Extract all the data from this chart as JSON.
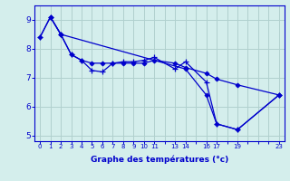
{
  "xlabel": "Graphe des températures (°c)",
  "bg_color": "#d4eeec",
  "line_color": "#0000cc",
  "grid_color": "#b0d0ce",
  "axis_color": "#0000cc",
  "xlim": [
    -0.5,
    23.5
  ],
  "ylim": [
    4.8,
    9.5
  ],
  "yticks": [
    5,
    6,
    7,
    8,
    9
  ],
  "xtick_positions": [
    0,
    1,
    2,
    3,
    4,
    5,
    6,
    7,
    8,
    9,
    10,
    11,
    12,
    13,
    14,
    15,
    16,
    17,
    18,
    19,
    20,
    21,
    22,
    23
  ],
  "xtick_labels": [
    "0",
    "1",
    "2",
    "3",
    "4",
    "5",
    "6",
    "7",
    "8",
    "9",
    "10",
    "11",
    "",
    "13",
    "14",
    "",
    "16",
    "17",
    "",
    "19",
    "",
    "",
    "",
    "23"
  ],
  "series1_x": [
    0,
    1,
    2,
    3,
    4,
    5,
    6,
    7,
    8,
    9,
    10,
    11,
    13,
    14,
    16,
    17,
    19,
    23
  ],
  "series1_y": [
    8.4,
    9.1,
    8.5,
    7.8,
    7.6,
    7.25,
    7.2,
    7.5,
    7.55,
    7.55,
    7.6,
    7.7,
    7.3,
    7.55,
    6.85,
    5.4,
    5.2,
    6.4
  ],
  "series2_x": [
    0,
    1,
    2,
    3,
    4,
    5,
    6,
    7,
    8,
    9,
    10,
    11,
    13,
    14,
    16,
    17,
    19,
    23
  ],
  "series2_y": [
    8.4,
    9.1,
    8.5,
    7.8,
    7.6,
    7.5,
    7.5,
    7.5,
    7.5,
    7.5,
    7.5,
    7.6,
    7.5,
    7.35,
    7.15,
    6.95,
    6.75,
    6.4
  ],
  "series3_x": [
    1,
    2,
    14,
    16,
    17,
    19,
    23
  ],
  "series3_y": [
    9.1,
    8.5,
    7.3,
    6.4,
    5.4,
    5.2,
    6.4
  ]
}
